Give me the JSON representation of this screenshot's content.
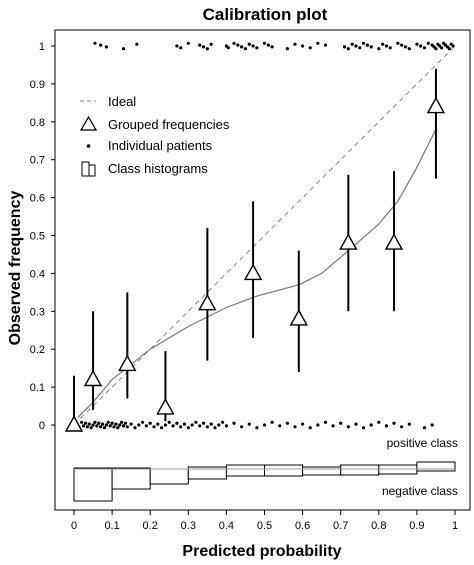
{
  "chart_data": {
    "type": "scatter",
    "title": "Calibration plot",
    "xlabel": "Predicted probability",
    "ylabel": "Observed frequency",
    "xlim": [
      0,
      1
    ],
    "ylim": [
      0,
      1
    ],
    "x_ticks": [
      "0",
      "0.1",
      "0.2",
      "0.3",
      "0.4",
      "0.5",
      "0.6",
      "0.7",
      "0.8",
      "0.9",
      "1"
    ],
    "y_ticks": [
      "0",
      "0.1",
      "0.2",
      "0.3",
      "0.4",
      "0.5",
      "0.6",
      "0.7",
      "0.8",
      "0.9",
      "1"
    ],
    "grid": false,
    "legend": {
      "placement": "top-left",
      "entries": [
        {
          "label": "Ideal",
          "symbol": "dashed-line"
        },
        {
          "label": "Grouped frequencies",
          "symbol": "triangle"
        },
        {
          "label": "Individual patients",
          "symbol": "dot"
        },
        {
          "label": "Class histograms",
          "symbol": "histogram"
        }
      ]
    },
    "ideal_line": [
      [
        0,
        0
      ],
      [
        1,
        1
      ]
    ],
    "grouped_frequencies": [
      {
        "x": 0.0,
        "y": 0.0,
        "ci_low": 0.0,
        "ci_high": 0.13
      },
      {
        "x": 0.05,
        "y": 0.12,
        "ci_low": 0.04,
        "ci_high": 0.3
      },
      {
        "x": 0.14,
        "y": 0.16,
        "ci_low": 0.07,
        "ci_high": 0.35
      },
      {
        "x": 0.24,
        "y": 0.045,
        "ci_low": 0.01,
        "ci_high": 0.195
      },
      {
        "x": 0.35,
        "y": 0.32,
        "ci_low": 0.17,
        "ci_high": 0.52
      },
      {
        "x": 0.47,
        "y": 0.4,
        "ci_low": 0.23,
        "ci_high": 0.59
      },
      {
        "x": 0.59,
        "y": 0.28,
        "ci_low": 0.14,
        "ci_high": 0.46
      },
      {
        "x": 0.72,
        "y": 0.48,
        "ci_low": 0.3,
        "ci_high": 0.66
      },
      {
        "x": 0.84,
        "y": 0.48,
        "ci_low": 0.3,
        "ci_high": 0.67
      },
      {
        "x": 0.95,
        "y": 0.84,
        "ci_low": 0.65,
        "ci_high": 0.94
      }
    ],
    "smooth_curve": {
      "x": [
        0.01,
        0.05,
        0.1,
        0.2,
        0.3,
        0.4,
        0.48,
        0.59,
        0.65,
        0.72,
        0.8,
        0.85,
        0.9,
        0.95
      ],
      "y": [
        0.02,
        0.06,
        0.12,
        0.2,
        0.26,
        0.31,
        0.34,
        0.37,
        0.4,
        0.46,
        0.53,
        0.59,
        0.68,
        0.78
      ]
    },
    "individual_patients": {
      "positive_class_y": 1,
      "positive_class_x": [
        0.055,
        0.07,
        0.085,
        0.13,
        0.165,
        0.27,
        0.28,
        0.3,
        0.33,
        0.34,
        0.35,
        0.36,
        0.4,
        0.405,
        0.42,
        0.43,
        0.44,
        0.45,
        0.46,
        0.47,
        0.48,
        0.5,
        0.51,
        0.52,
        0.56,
        0.58,
        0.6,
        0.62,
        0.64,
        0.66,
        0.71,
        0.72,
        0.73,
        0.74,
        0.75,
        0.76,
        0.77,
        0.78,
        0.8,
        0.81,
        0.82,
        0.83,
        0.85,
        0.86,
        0.87,
        0.88,
        0.9,
        0.91,
        0.92,
        0.93,
        0.94,
        0.945,
        0.95,
        0.955,
        0.96,
        0.965,
        0.97,
        0.975,
        0.98,
        0.985,
        0.99,
        0.995
      ],
      "negative_class_y": 0,
      "negative_class_x": [
        0.02,
        0.025,
        0.03,
        0.035,
        0.04,
        0.045,
        0.05,
        0.055,
        0.06,
        0.065,
        0.07,
        0.075,
        0.08,
        0.085,
        0.09,
        0.095,
        0.1,
        0.105,
        0.11,
        0.115,
        0.12,
        0.125,
        0.13,
        0.135,
        0.14,
        0.15,
        0.16,
        0.17,
        0.18,
        0.19,
        0.2,
        0.21,
        0.22,
        0.23,
        0.24,
        0.25,
        0.26,
        0.27,
        0.28,
        0.29,
        0.3,
        0.31,
        0.32,
        0.33,
        0.34,
        0.35,
        0.36,
        0.37,
        0.38,
        0.39,
        0.4,
        0.42,
        0.44,
        0.46,
        0.48,
        0.5,
        0.52,
        0.54,
        0.56,
        0.58,
        0.6,
        0.62,
        0.64,
        0.66,
        0.68,
        0.7,
        0.72,
        0.74,
        0.76,
        0.78,
        0.8,
        0.82,
        0.84,
        0.86,
        0.88,
        0.92,
        0.94
      ]
    },
    "class_histograms": {
      "bins": [
        [
          0.0,
          0.1
        ],
        [
          0.1,
          0.2
        ],
        [
          0.2,
          0.3
        ],
        [
          0.3,
          0.4
        ],
        [
          0.4,
          0.5
        ],
        [
          0.5,
          0.6
        ],
        [
          0.6,
          0.7
        ],
        [
          0.7,
          0.8
        ],
        [
          0.8,
          0.9
        ],
        [
          0.9,
          1.0
        ]
      ],
      "positive_counts": [
        1,
        1,
        0,
        2,
        4,
        4,
        2,
        4,
        4,
        7
      ],
      "negative_counts": [
        32,
        20,
        15,
        10,
        7,
        7,
        6,
        6,
        5,
        2
      ],
      "positive_label": "positive class",
      "negative_label": "negative class"
    }
  }
}
